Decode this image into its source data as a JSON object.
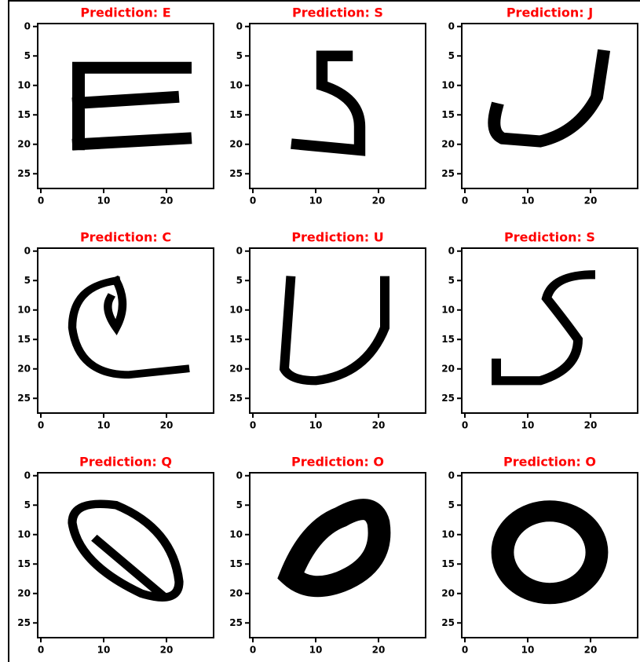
{
  "chart_data": [
    {
      "type": "image",
      "title": "Prediction: E",
      "xlim": [
        -0.5,
        27.5
      ],
      "ylim": [
        27.5,
        -0.5
      ],
      "xticks": [
        0,
        10,
        20
      ],
      "yticks": [
        0,
        5,
        10,
        15,
        20,
        25
      ]
    },
    {
      "type": "image",
      "title": "Prediction: S",
      "xlim": [
        -0.5,
        27.5
      ],
      "ylim": [
        27.5,
        -0.5
      ],
      "xticks": [
        0,
        10,
        20
      ],
      "yticks": [
        0,
        5,
        10,
        15,
        20,
        25
      ]
    },
    {
      "type": "image",
      "title": "Prediction: J",
      "xlim": [
        -0.5,
        27.5
      ],
      "ylim": [
        27.5,
        -0.5
      ],
      "xticks": [
        0,
        10,
        20
      ],
      "yticks": [
        0,
        5,
        10,
        15,
        20,
        25
      ]
    },
    {
      "type": "image",
      "title": "Prediction: C",
      "xlim": [
        -0.5,
        27.5
      ],
      "ylim": [
        27.5,
        -0.5
      ],
      "xticks": [
        0,
        10,
        20
      ],
      "yticks": [
        0,
        5,
        10,
        15,
        20,
        25
      ]
    },
    {
      "type": "image",
      "title": "Prediction: U",
      "xlim": [
        -0.5,
        27.5
      ],
      "ylim": [
        27.5,
        -0.5
      ],
      "xticks": [
        0,
        10,
        20
      ],
      "yticks": [
        0,
        5,
        10,
        15,
        20,
        25
      ]
    },
    {
      "type": "image",
      "title": "Prediction: S",
      "xlim": [
        -0.5,
        27.5
      ],
      "ylim": [
        27.5,
        -0.5
      ],
      "xticks": [
        0,
        10,
        20
      ],
      "yticks": [
        0,
        5,
        10,
        15,
        20,
        25
      ]
    },
    {
      "type": "image",
      "title": "Prediction: Q",
      "xlim": [
        -0.5,
        27.5
      ],
      "ylim": [
        27.5,
        -0.5
      ],
      "xticks": [
        0,
        10,
        20
      ],
      "yticks": [
        0,
        5,
        10,
        15,
        20,
        25
      ]
    },
    {
      "type": "image",
      "title": "Prediction: O",
      "xlim": [
        -0.5,
        27.5
      ],
      "ylim": [
        27.5,
        -0.5
      ],
      "xticks": [
        0,
        10,
        20
      ],
      "yticks": [
        0,
        5,
        10,
        15,
        20,
        25
      ]
    },
    {
      "type": "image",
      "title": "Prediction: O",
      "xlim": [
        -0.5,
        27.5
      ],
      "ylim": [
        27.5,
        -0.5
      ],
      "xticks": [
        0,
        10,
        20
      ],
      "yticks": [
        0,
        5,
        10,
        15,
        20,
        25
      ]
    }
  ]
}
